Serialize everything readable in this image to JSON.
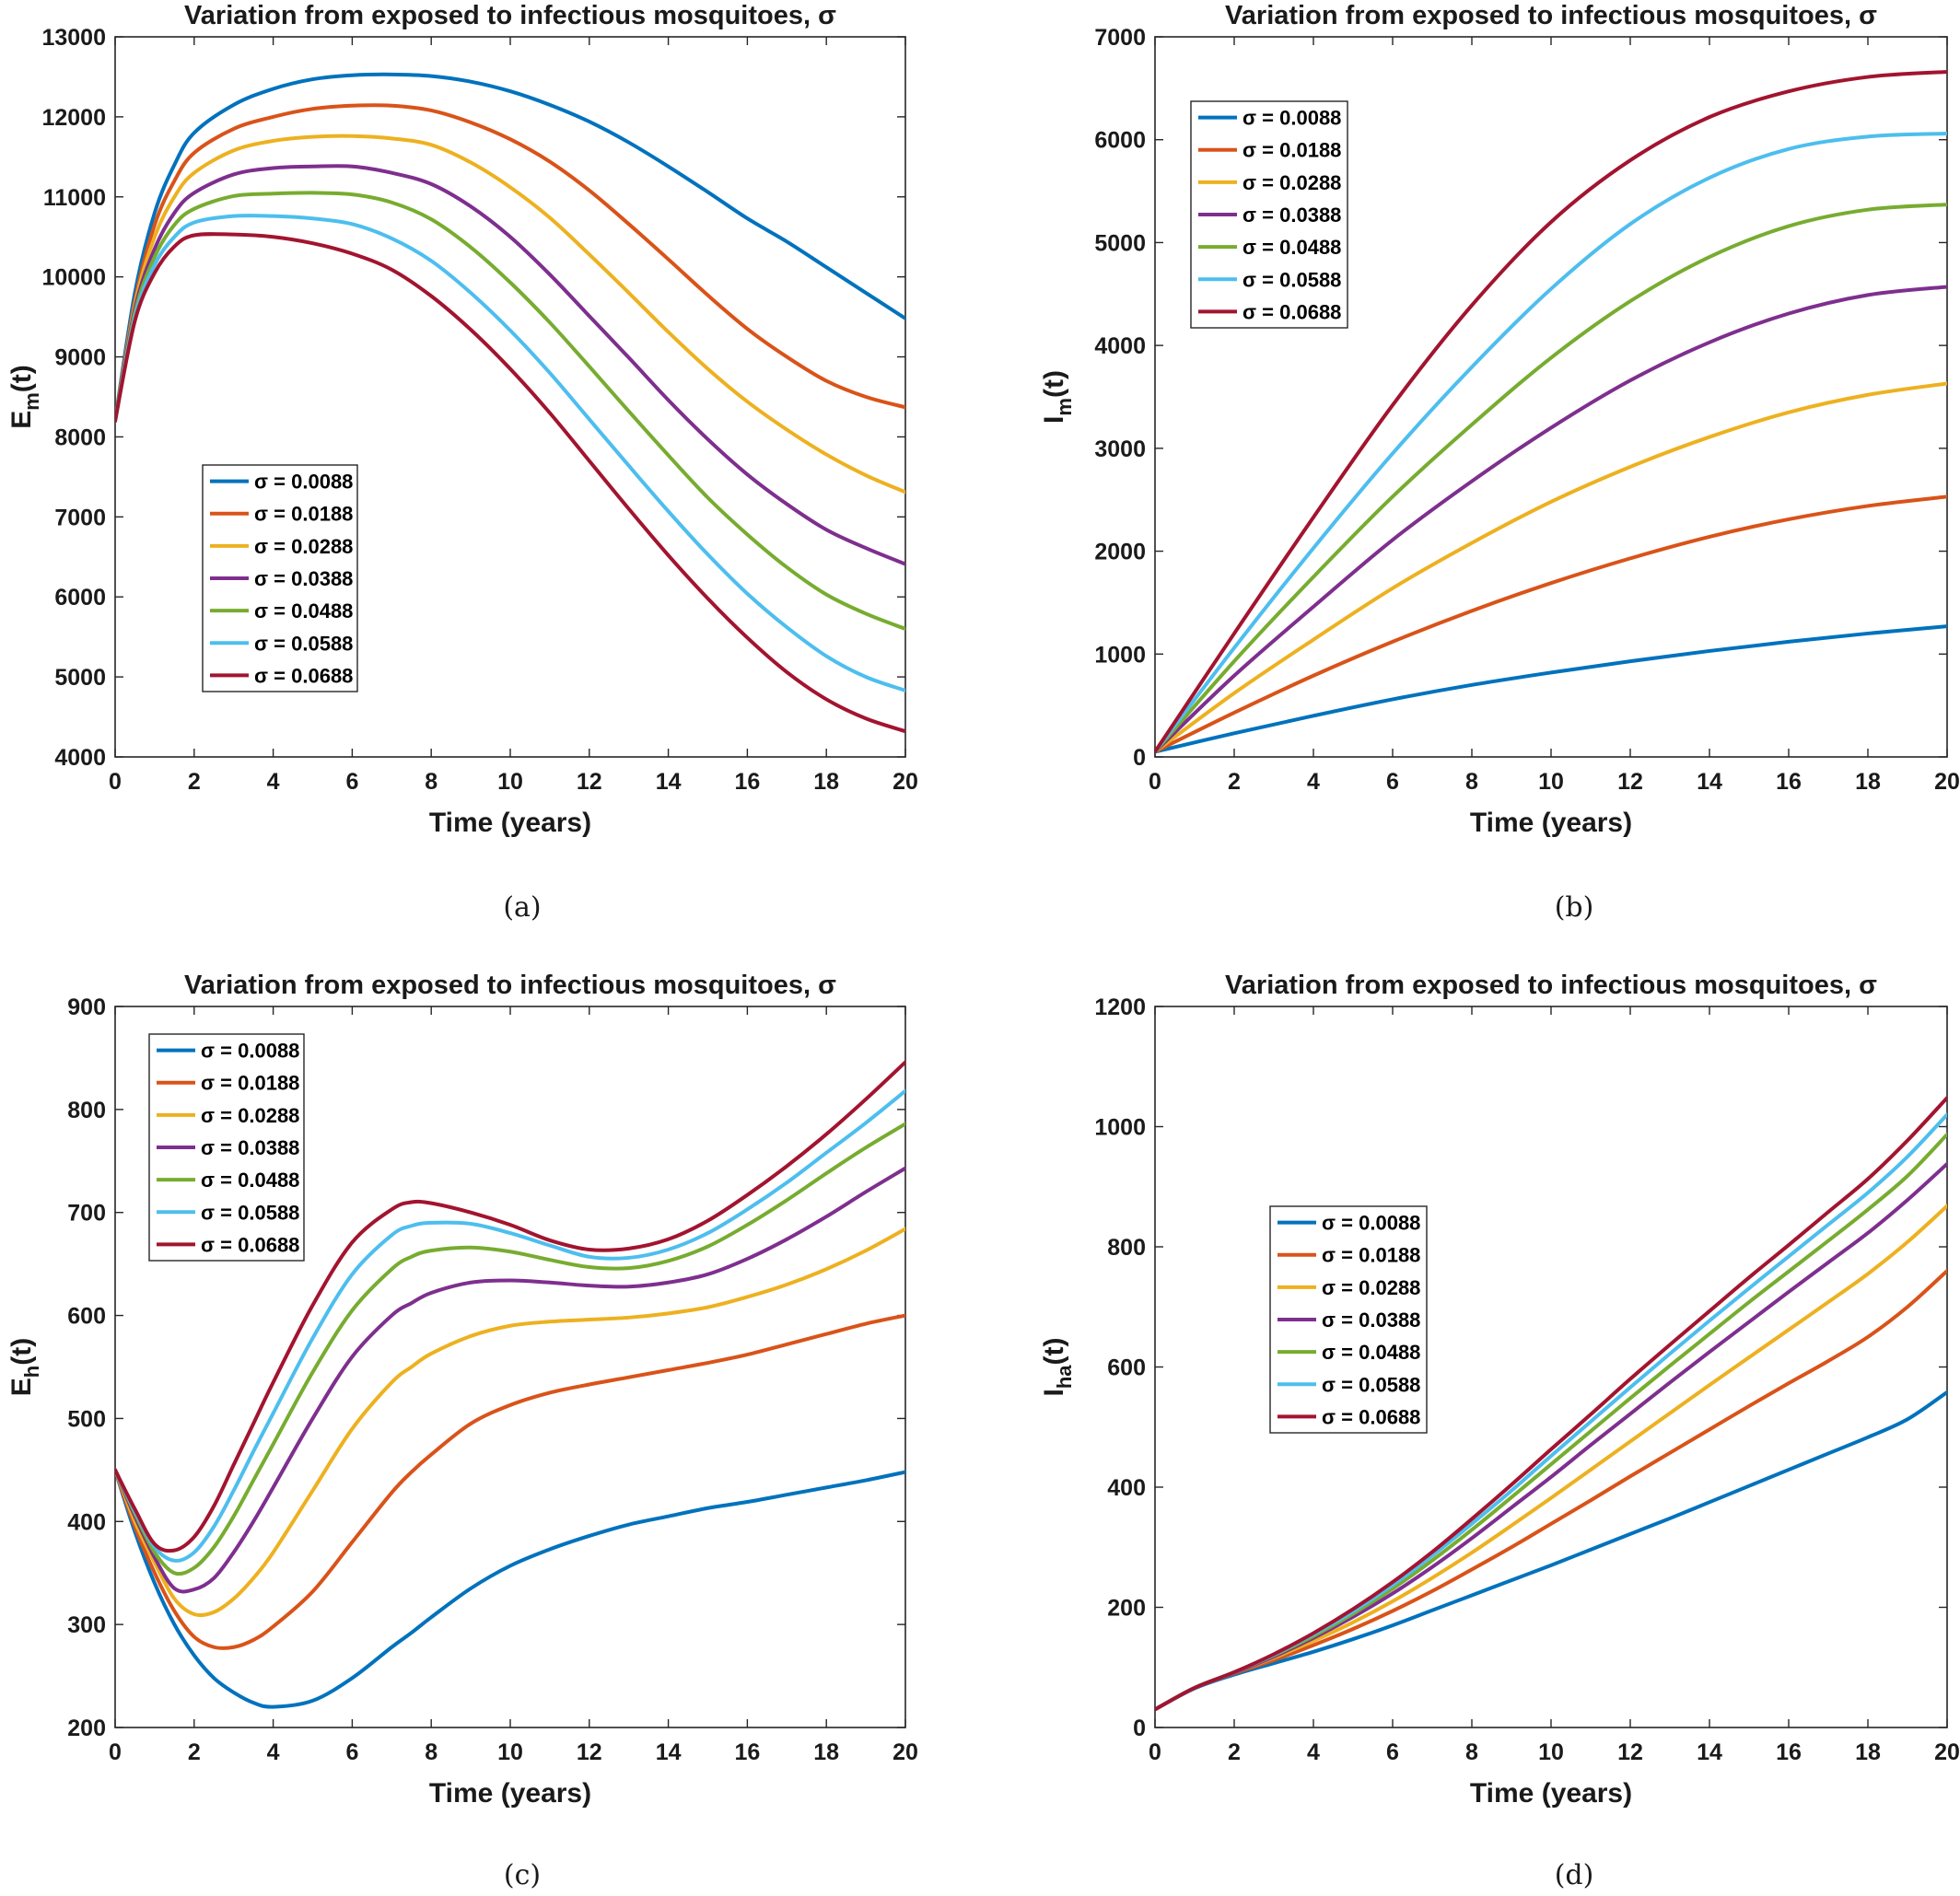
{
  "chart_data": [
    {
      "type": "line",
      "panel": "a",
      "caption": "(a)",
      "title": "Variation from exposed to infectious mosquitoes, σ",
      "xlabel": "Time (years)",
      "ylabel": "E",
      "ylabel_sub": "m",
      "ylabel_suffix": "(t)",
      "xlim": [
        0,
        20
      ],
      "ylim": [
        4000,
        13000
      ],
      "xticks": [
        "0",
        "2",
        "4",
        "6",
        "8",
        "10",
        "12",
        "14",
        "16",
        "18",
        "20"
      ],
      "yticks": [
        "4000",
        "5000",
        "6000",
        "7000",
        "8000",
        "9000",
        "10000",
        "11000",
        "12000",
        "13000"
      ],
      "legend_position": "lower-left",
      "x": [
        0,
        0.5,
        1,
        1.5,
        2,
        3,
        4,
        5,
        6,
        7,
        8,
        9,
        10,
        11,
        12,
        13,
        14,
        15,
        16,
        17,
        18,
        19,
        20
      ],
      "series": [
        {
          "name": "σ = 0.0088",
          "color": "#0072BD",
          "values": [
            8200,
            9800,
            10800,
            11400,
            11800,
            12150,
            12350,
            12470,
            12520,
            12530,
            12510,
            12440,
            12320,
            12150,
            11940,
            11680,
            11380,
            11060,
            10730,
            10440,
            10120,
            9800,
            9480
          ]
        },
        {
          "name": "σ = 0.0188",
          "color": "#D95319",
          "values": [
            8200,
            9700,
            10650,
            11200,
            11550,
            11850,
            12000,
            12100,
            12140,
            12140,
            12080,
            11930,
            11720,
            11440,
            11080,
            10660,
            10220,
            9770,
            9350,
            9000,
            8700,
            8500,
            8370
          ]
        },
        {
          "name": "σ = 0.0288",
          "color": "#EDB120",
          "values": [
            8200,
            9650,
            10500,
            11000,
            11300,
            11580,
            11700,
            11750,
            11760,
            11730,
            11650,
            11430,
            11120,
            10740,
            10280,
            9800,
            9310,
            8850,
            8440,
            8090,
            7780,
            7520,
            7310
          ]
        },
        {
          "name": "σ = 0.0388",
          "color": "#7E2F8E",
          "values": [
            8200,
            9600,
            10350,
            10800,
            11050,
            11280,
            11360,
            11380,
            11380,
            11300,
            11160,
            10880,
            10500,
            10030,
            9510,
            8990,
            8460,
            7970,
            7530,
            7160,
            6840,
            6610,
            6410
          ]
        },
        {
          "name": "σ = 0.0488",
          "color": "#77AC30",
          "values": [
            8200,
            9550,
            10250,
            10650,
            10850,
            11010,
            11040,
            11050,
            11030,
            10930,
            10720,
            10370,
            9930,
            9430,
            8880,
            8320,
            7770,
            7240,
            6780,
            6370,
            6030,
            5790,
            5600
          ]
        },
        {
          "name": "σ = 0.0588",
          "color": "#4DBEEE",
          "values": [
            8200,
            9500,
            10150,
            10500,
            10680,
            10760,
            10760,
            10730,
            10660,
            10480,
            10200,
            9800,
            9330,
            8800,
            8220,
            7640,
            7070,
            6530,
            6040,
            5620,
            5260,
            5000,
            4830
          ]
        },
        {
          "name": "σ = 0.0688",
          "color": "#A2142F",
          "values": [
            8200,
            9450,
            10050,
            10380,
            10520,
            10530,
            10500,
            10420,
            10290,
            10090,
            9760,
            9340,
            8850,
            8300,
            7700,
            7100,
            6520,
            5980,
            5490,
            5060,
            4720,
            4480,
            4320
          ]
        }
      ]
    },
    {
      "type": "line",
      "panel": "b",
      "caption": "(b)",
      "title": "Variation from exposed to infectious mosquitoes, σ",
      "xlabel": "Time (years)",
      "ylabel": "I",
      "ylabel_sub": "m",
      "ylabel_suffix": "(t)",
      "xlim": [
        0,
        20
      ],
      "ylim": [
        0,
        7000
      ],
      "xticks": [
        "0",
        "2",
        "4",
        "6",
        "8",
        "10",
        "12",
        "14",
        "16",
        "18",
        "20"
      ],
      "yticks": [
        "0",
        "1000",
        "2000",
        "3000",
        "4000",
        "5000",
        "6000",
        "7000"
      ],
      "legend_position": "top-left",
      "x": [
        0,
        2,
        4,
        6,
        8,
        10,
        12,
        14,
        16,
        18,
        20
      ],
      "series": [
        {
          "name": "σ = 0.0088",
          "color": "#0072BD",
          "values": [
            50,
            230,
            400,
            560,
            700,
            820,
            930,
            1030,
            1120,
            1200,
            1270
          ]
        },
        {
          "name": "σ = 0.0188",
          "color": "#D95319",
          "values": [
            50,
            430,
            790,
            1120,
            1420,
            1690,
            1930,
            2140,
            2310,
            2440,
            2530
          ]
        },
        {
          "name": "σ = 0.0288",
          "color": "#EDB120",
          "values": [
            50,
            620,
            1140,
            1640,
            2080,
            2480,
            2820,
            3110,
            3350,
            3520,
            3630
          ]
        },
        {
          "name": "σ = 0.0388",
          "color": "#7E2F8E",
          "values": [
            50,
            790,
            1460,
            2110,
            2680,
            3200,
            3660,
            4030,
            4310,
            4490,
            4570
          ]
        },
        {
          "name": "σ = 0.0488",
          "color": "#77AC30",
          "values": [
            50,
            930,
            1750,
            2530,
            3230,
            3880,
            4430,
            4860,
            5160,
            5320,
            5370
          ]
        },
        {
          "name": "σ = 0.0588",
          "color": "#4DBEEE",
          "values": [
            50,
            1060,
            2030,
            2950,
            3790,
            4550,
            5180,
            5630,
            5910,
            6030,
            6060
          ]
        },
        {
          "name": "σ = 0.0688",
          "color": "#A2142F",
          "values": [
            50,
            1200,
            2330,
            3420,
            4390,
            5200,
            5800,
            6220,
            6470,
            6610,
            6660
          ]
        }
      ]
    },
    {
      "type": "line",
      "panel": "c",
      "caption": "(c)",
      "title": "Variation from exposed to infectious mosquitoes, σ",
      "xlabel": "Time (years)",
      "ylabel": "E",
      "ylabel_sub": "h",
      "ylabel_suffix": "(t)",
      "xlim": [
        0,
        20
      ],
      "ylim": [
        200,
        900
      ],
      "xticks": [
        "0",
        "2",
        "4",
        "6",
        "8",
        "10",
        "12",
        "14",
        "16",
        "18",
        "20"
      ],
      "yticks": [
        "200",
        "300",
        "400",
        "500",
        "600",
        "700",
        "800",
        "900"
      ],
      "legend_position": "top-left",
      "x": [
        0,
        0.5,
        1,
        1.5,
        2,
        2.5,
        3,
        3.5,
        4,
        5,
        6,
        7,
        7.5,
        8,
        9,
        10,
        11,
        12,
        13,
        14,
        15,
        16,
        17,
        18,
        19,
        20
      ],
      "series": [
        {
          "name": "σ = 0.0088",
          "color": "#0072BD",
          "values": [
            450,
            390,
            340,
            300,
            270,
            248,
            234,
            224,
            220,
            226,
            248,
            278,
            292,
            307,
            335,
            357,
            373,
            386,
            397,
            405,
            413,
            419,
            426,
            433,
            440,
            448
          ]
        },
        {
          "name": "σ = 0.0188",
          "color": "#D95319",
          "values": [
            450,
            395,
            350,
            313,
            288,
            278,
            278,
            285,
            298,
            332,
            380,
            428,
            448,
            465,
            495,
            513,
            525,
            533,
            540,
            547,
            554,
            562,
            572,
            582,
            592,
            600
          ]
        },
        {
          "name": "σ = 0.0288",
          "color": "#EDB120",
          "values": [
            450,
            400,
            360,
            325,
            310,
            312,
            325,
            345,
            370,
            430,
            490,
            535,
            550,
            563,
            580,
            590,
            594,
            596,
            598,
            602,
            608,
            618,
            630,
            645,
            663,
            684
          ]
        },
        {
          "name": "σ = 0.0388",
          "color": "#7E2F8E",
          "values": [
            450,
            405,
            365,
            335,
            334,
            345,
            370,
            400,
            433,
            500,
            560,
            600,
            612,
            622,
            632,
            634,
            632,
            629,
            628,
            632,
            640,
            655,
            674,
            696,
            720,
            743
          ]
        },
        {
          "name": "σ = 0.0488",
          "color": "#77AC30",
          "values": [
            450,
            408,
            370,
            350,
            355,
            375,
            405,
            440,
            475,
            545,
            605,
            645,
            657,
            663,
            666,
            662,
            654,
            647,
            646,
            653,
            667,
            688,
            712,
            738,
            763,
            786
          ]
        },
        {
          "name": "σ = 0.0588",
          "color": "#4DBEEE",
          "values": [
            450,
            410,
            375,
            362,
            370,
            395,
            430,
            468,
            505,
            578,
            640,
            678,
            687,
            690,
            689,
            680,
            668,
            657,
            656,
            664,
            680,
            703,
            729,
            758,
            787,
            818
          ]
        },
        {
          "name": "σ = 0.0688",
          "color": "#A2142F",
          "values": [
            450,
            412,
            378,
            372,
            385,
            415,
            455,
            495,
            535,
            610,
            671,
            703,
            710,
            709,
            700,
            688,
            673,
            664,
            665,
            674,
            692,
            717,
            745,
            776,
            810,
            846
          ]
        }
      ]
    },
    {
      "type": "line",
      "panel": "d",
      "caption": "(d)",
      "title": "Variation from exposed to infectious mosquitoes, σ",
      "xlabel": "Time (years)",
      "ylabel": "I",
      "ylabel_sub": "ha",
      "ylabel_suffix": "(t)",
      "xlim": [
        0,
        20
      ],
      "ylim": [
        0,
        1200
      ],
      "xticks": [
        "0",
        "2",
        "4",
        "6",
        "8",
        "10",
        "12",
        "14",
        "16",
        "18",
        "20"
      ],
      "yticks": [
        "0",
        "200",
        "400",
        "600",
        "800",
        "1000",
        "1200"
      ],
      "legend_position": "middle-left",
      "x": [
        0,
        1,
        2,
        3,
        4,
        5,
        6,
        7,
        8,
        9,
        10,
        11,
        12,
        13,
        14,
        15,
        16,
        17,
        18,
        19,
        20
      ],
      "series": [
        {
          "name": "σ = 0.0088",
          "color": "#0072BD",
          "values": [
            30,
            65,
            88,
            107,
            126,
            147,
            170,
            195,
            220,
            245,
            270,
            296,
            322,
            348,
            375,
            402,
            429,
            456,
            483,
            513,
            558
          ]
        },
        {
          "name": "σ = 0.0188",
          "color": "#D95319",
          "values": [
            30,
            66,
            90,
            112,
            137,
            164,
            194,
            227,
            263,
            300,
            339,
            378,
            418,
            457,
            496,
            535,
            573,
            610,
            650,
            700,
            760
          ]
        },
        {
          "name": "σ = 0.0288",
          "color": "#EDB120",
          "values": [
            30,
            66,
            91,
            116,
            144,
            175,
            210,
            249,
            291,
            336,
            382,
            429,
            476,
            523,
            570,
            616,
            662,
            708,
            755,
            808,
            868
          ]
        },
        {
          "name": "σ = 0.0388",
          "color": "#7E2F8E",
          "values": [
            30,
            66,
            91,
            118,
            149,
            184,
            223,
            267,
            315,
            366,
            417,
            470,
            522,
            574,
            625,
            675,
            725,
            774,
            823,
            878,
            938
          ]
        },
        {
          "name": "σ = 0.0488",
          "color": "#77AC30",
          "values": [
            30,
            66,
            92,
            120,
            152,
            189,
            231,
            278,
            329,
            383,
            438,
            493,
            548,
            602,
            655,
            708,
            759,
            810,
            862,
            918,
            987
          ]
        },
        {
          "name": "σ = 0.0588",
          "color": "#4DBEEE",
          "values": [
            30,
            66,
            92,
            121,
            155,
            193,
            237,
            286,
            339,
            394,
            452,
            509,
            566,
            622,
            677,
            731,
            784,
            837,
            890,
            950,
            1020
          ]
        },
        {
          "name": "σ = 0.0688",
          "color": "#A2142F",
          "values": [
            30,
            66,
            92,
            122,
            157,
            197,
            242,
            292,
            347,
            404,
            463,
            521,
            580,
            637,
            693,
            749,
            803,
            858,
            913,
            977,
            1048
          ]
        }
      ]
    }
  ]
}
